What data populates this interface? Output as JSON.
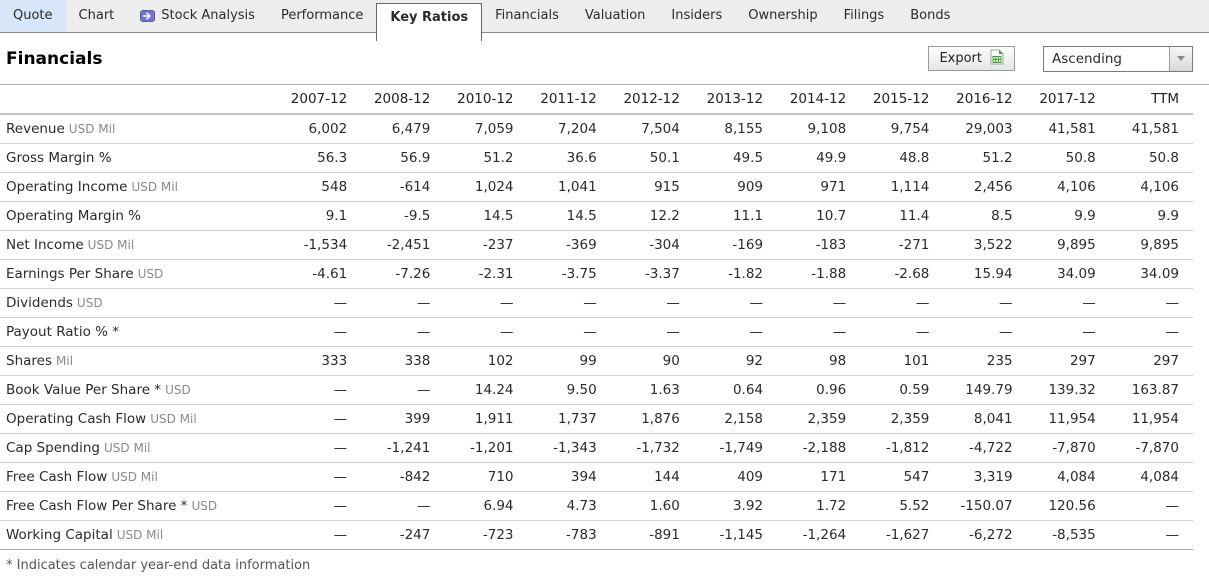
{
  "nav": {
    "tabs": [
      {
        "label": "Quote",
        "state": "highlighted"
      },
      {
        "label": "Chart",
        "state": ""
      },
      {
        "label": "Stock Analysis",
        "state": "",
        "icon": "premium-arrow-icon"
      },
      {
        "label": "Performance",
        "state": ""
      },
      {
        "label": "Key Ratios",
        "state": "active"
      },
      {
        "label": "Financials",
        "state": ""
      },
      {
        "label": "Valuation",
        "state": ""
      },
      {
        "label": "Insiders",
        "state": ""
      },
      {
        "label": "Ownership",
        "state": ""
      },
      {
        "label": "Filings",
        "state": ""
      },
      {
        "label": "Bonds",
        "state": ""
      }
    ]
  },
  "header": {
    "title": "Financials",
    "export_label": "Export",
    "sort_value": "Ascending"
  },
  "table": {
    "columns": [
      "2007-12",
      "2008-12",
      "2010-12",
      "2011-12",
      "2012-12",
      "2013-12",
      "2014-12",
      "2015-12",
      "2016-12",
      "2017-12",
      "TTM"
    ],
    "rows": [
      {
        "label": "Revenue",
        "unit": "USD Mil",
        "values": [
          "6,002",
          "6,479",
          "7,059",
          "7,204",
          "7,504",
          "8,155",
          "9,108",
          "9,754",
          "29,003",
          "41,581",
          "41,581"
        ]
      },
      {
        "label": "Gross Margin %",
        "unit": "",
        "values": [
          "56.3",
          "56.9",
          "51.2",
          "36.6",
          "50.1",
          "49.5",
          "49.9",
          "48.8",
          "51.2",
          "50.8",
          "50.8"
        ]
      },
      {
        "label": "Operating Income",
        "unit": "USD Mil",
        "values": [
          "548",
          "-614",
          "1,024",
          "1,041",
          "915",
          "909",
          "971",
          "1,114",
          "2,456",
          "4,106",
          "4,106"
        ]
      },
      {
        "label": "Operating Margin %",
        "unit": "",
        "values": [
          "9.1",
          "-9.5",
          "14.5",
          "14.5",
          "12.2",
          "11.1",
          "10.7",
          "11.4",
          "8.5",
          "9.9",
          "9.9"
        ]
      },
      {
        "label": "Net Income",
        "unit": "USD Mil",
        "values": [
          "-1,534",
          "-2,451",
          "-237",
          "-369",
          "-304",
          "-169",
          "-183",
          "-271",
          "3,522",
          "9,895",
          "9,895"
        ]
      },
      {
        "label": "Earnings Per Share",
        "unit": "USD",
        "values": [
          "-4.61",
          "-7.26",
          "-2.31",
          "-3.75",
          "-3.37",
          "-1.82",
          "-1.88",
          "-2.68",
          "15.94",
          "34.09",
          "34.09"
        ]
      },
      {
        "label": "Dividends",
        "unit": "USD",
        "values": [
          "—",
          "—",
          "—",
          "—",
          "—",
          "—",
          "—",
          "—",
          "—",
          "—",
          "—"
        ]
      },
      {
        "label": "Payout Ratio % *",
        "unit": "",
        "values": [
          "—",
          "—",
          "—",
          "—",
          "—",
          "—",
          "—",
          "—",
          "—",
          "—",
          "—"
        ]
      },
      {
        "label": "Shares",
        "unit": "Mil",
        "values": [
          "333",
          "338",
          "102",
          "99",
          "90",
          "92",
          "98",
          "101",
          "235",
          "297",
          "297"
        ]
      },
      {
        "label": "Book Value Per Share *",
        "unit": "USD",
        "values": [
          "—",
          "—",
          "14.24",
          "9.50",
          "1.63",
          "0.64",
          "0.96",
          "0.59",
          "149.79",
          "139.32",
          "163.87"
        ]
      },
      {
        "label": "Operating Cash Flow",
        "unit": "USD Mil",
        "values": [
          "—",
          "399",
          "1,911",
          "1,737",
          "1,876",
          "2,158",
          "2,359",
          "2,359",
          "8,041",
          "11,954",
          "11,954"
        ]
      },
      {
        "label": "Cap Spending",
        "unit": "USD Mil",
        "values": [
          "—",
          "-1,241",
          "-1,201",
          "-1,343",
          "-1,732",
          "-1,749",
          "-2,188",
          "-1,812",
          "-4,722",
          "-7,870",
          "-7,870"
        ]
      },
      {
        "label": "Free Cash Flow",
        "unit": "USD Mil",
        "values": [
          "—",
          "-842",
          "710",
          "394",
          "144",
          "409",
          "171",
          "547",
          "3,319",
          "4,084",
          "4,084"
        ]
      },
      {
        "label": "Free Cash Flow Per Share *",
        "unit": "USD",
        "values": [
          "—",
          "—",
          "6.94",
          "4.73",
          "1.60",
          "3.92",
          "1.72",
          "5.52",
          "-150.07",
          "120.56",
          "—"
        ]
      },
      {
        "label": "Working Capital",
        "unit": "USD Mil",
        "values": [
          "—",
          "-247",
          "-723",
          "-783",
          "-891",
          "-1,145",
          "-1,264",
          "-1,627",
          "-6,272",
          "-8,535",
          "—"
        ]
      }
    ],
    "footnote": "* Indicates calendar year-end data information"
  },
  "colors": {
    "active_tab_bg": "#ffffff",
    "quote_tab_bg": "#d7e6f8",
    "nav_bg": "#ededed",
    "premium_icon_purple": "#7473cc",
    "export_icon_green": "#3fa23f"
  }
}
